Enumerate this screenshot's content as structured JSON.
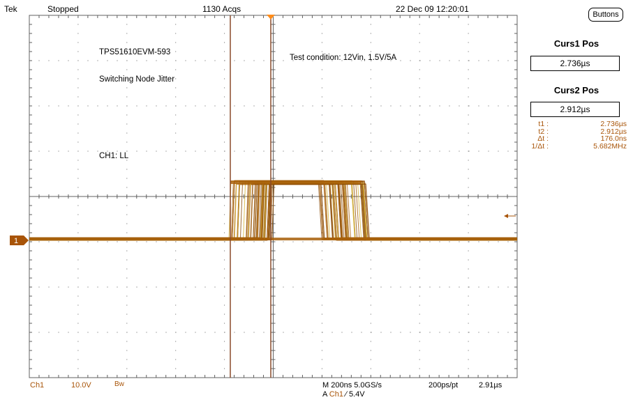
{
  "header": {
    "brand": "Tek",
    "status": "Stopped",
    "acquisitions": "1130 Acqs",
    "datetime": "22 Dec 09 12:20:01",
    "buttons_label": "Buttons"
  },
  "annotations": {
    "board": "TPS51610EVM-593",
    "title": "Switching Node Jitter",
    "condition": "Test condition: 12Vin, 1.5V/5A",
    "channel_note": "CH1: LL"
  },
  "cursors": {
    "curs1_title": "Curs1 Pos",
    "curs1_value": "2.736µs",
    "curs2_title": "Curs2 Pos",
    "curs2_value": "2.912µs",
    "readouts": [
      {
        "label": "t1 :",
        "value": "2.736µs"
      },
      {
        "label": "t2 :",
        "value": "2.912µs"
      },
      {
        "label": "Δt :",
        "value": "176.0ns"
      },
      {
        "label": "1/Δt :",
        "value": "5.682MHz"
      }
    ]
  },
  "channel": {
    "marker": "1",
    "name": "Ch1",
    "scale": "10.0V",
    "bw": "Bw"
  },
  "timebase": {
    "horizontal": "M 200ns 5.0GS/s",
    "trigger_prefix": "A",
    "trigger_channel": "Ch1",
    "trigger_level": "∕  5.4V",
    "record_rate": "200ps/pt",
    "position": "2.91µs"
  },
  "colors": {
    "trace": "#a8600a",
    "trace_dark": "#8a4a05",
    "trace_light": "#d4b030",
    "grid": "#606060",
    "cursor": "#8a4a2a",
    "trigger_marker": "#ff8c1a"
  }
}
